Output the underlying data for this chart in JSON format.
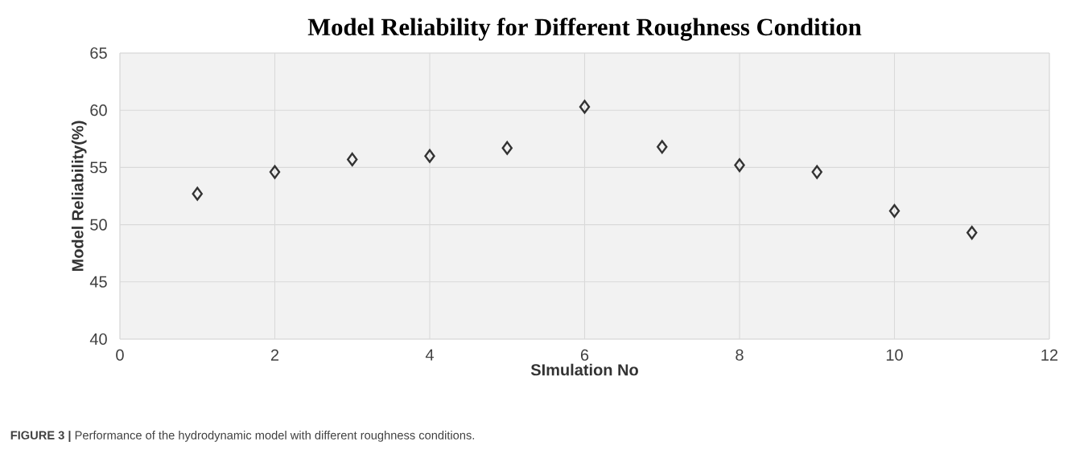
{
  "chart_data": {
    "type": "scatter",
    "title": "Model Reliability for Different Roughness Condition",
    "xlabel": "SImulation No",
    "ylabel": "Model  Reliability(%)",
    "x": [
      1,
      2,
      3,
      4,
      5,
      6,
      7,
      8,
      9,
      10,
      11
    ],
    "values": [
      52.7,
      54.6,
      55.7,
      56.0,
      56.7,
      60.3,
      56.8,
      55.2,
      54.6,
      51.2,
      49.3
    ],
    "color": "#333333",
    "marker": "diamond",
    "xlim": [
      0,
      12
    ],
    "xticks": [
      0,
      2,
      4,
      6,
      8,
      10,
      12
    ],
    "ylim": [
      40,
      65
    ],
    "yticks": [
      40,
      45,
      50,
      55,
      60,
      65
    ],
    "grid": true,
    "annotations": [
      "**FIGURE 3 |** Performance of the hydrodynamic model with different roughness conditions."
    ]
  }
}
